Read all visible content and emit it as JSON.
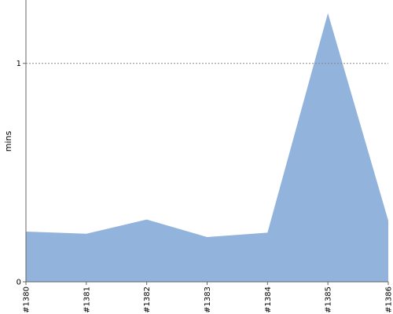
{
  "chart_data": {
    "type": "area",
    "categories": [
      "#1380",
      "#1381",
      "#1382",
      "#1383",
      "#1384",
      "#1385",
      "#1386"
    ],
    "series": [
      {
        "values": [
          0.23,
          0.22,
          0.285,
          0.205,
          0.225,
          1.23,
          0.28
        ]
      }
    ],
    "title": "",
    "xlabel": "",
    "ylabel": "mins",
    "ylim": [
      0,
      1.29
    ],
    "yticks": [
      0,
      1
    ],
    "reference_line": {
      "value": 1,
      "style": "dotted"
    },
    "grid": false,
    "colors": {
      "fill": "#92b3dc",
      "axis": "#666666",
      "reference": "#888888"
    }
  }
}
